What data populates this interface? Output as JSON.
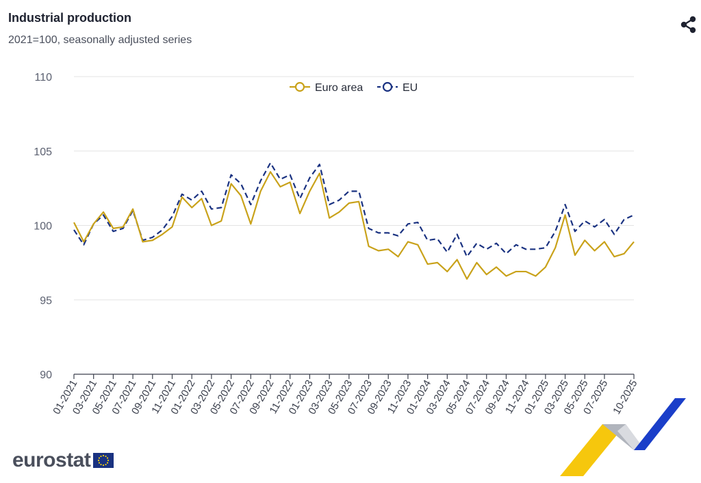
{
  "header": {
    "title": "Industrial production",
    "subtitle": "2021=100, seasonally adjusted series"
  },
  "toolbar": {
    "share_icon": "share-icon"
  },
  "brand": {
    "name": "eurostat",
    "flag_icon": "eu-flag-icon",
    "decoration": "eurostat-ribbon-graphic"
  },
  "colors": {
    "euro_area": "#c9a21a",
    "eu": "#1a3281",
    "grid": "#e3e3e3",
    "axis_text": "#5b6070"
  },
  "chart_data": {
    "type": "line",
    "title": "Industrial production",
    "subtitle": "2021=100, seasonally adjusted series",
    "xlabel": "",
    "ylabel": "",
    "ylim": [
      90,
      110
    ],
    "yticks": [
      "90",
      "95",
      "100",
      "105",
      "110"
    ],
    "grid": true,
    "legend": "top-center",
    "x": [
      "01-2021",
      "02-2021",
      "03-2021",
      "04-2021",
      "05-2021",
      "06-2021",
      "07-2021",
      "08-2021",
      "09-2021",
      "10-2021",
      "11-2021",
      "12-2021",
      "01-2022",
      "02-2022",
      "03-2022",
      "04-2022",
      "05-2022",
      "06-2022",
      "07-2022",
      "08-2022",
      "09-2022",
      "10-2022",
      "11-2022",
      "12-2022",
      "01-2023",
      "02-2023",
      "03-2023",
      "04-2023",
      "05-2023",
      "06-2023",
      "07-2023",
      "08-2023",
      "09-2023",
      "10-2023",
      "11-2023",
      "12-2023",
      "01-2024",
      "02-2024",
      "03-2024",
      "04-2024",
      "05-2024",
      "06-2024",
      "07-2024",
      "08-2024",
      "09-2024",
      "10-2024",
      "11-2024",
      "12-2024",
      "01-2025",
      "02-2025",
      "03-2025",
      "04-2025",
      "05-2025",
      "06-2025",
      "07-2025",
      "08-2025",
      "09-2025",
      "10-2025"
    ],
    "xtick_labels": [
      "01-2021",
      "03-2021",
      "05-2021",
      "07-2021",
      "09-2021",
      "11-2021",
      "01-2022",
      "03-2022",
      "05-2022",
      "07-2022",
      "09-2022",
      "11-2022",
      "01-2023",
      "03-2023",
      "05-2023",
      "07-2023",
      "09-2023",
      "11-2023",
      "01-2024",
      "03-2024",
      "05-2024",
      "07-2024",
      "09-2024",
      "11-2024",
      "01-2025",
      "03-2025",
      "05-2025",
      "07-2025",
      "10-2025"
    ],
    "series": [
      {
        "name": "Euro area",
        "style": "solid",
        "color": "#c9a21a",
        "values": [
          100.2,
          98.9,
          100.1,
          100.9,
          99.8,
          99.9,
          101.1,
          98.9,
          99.0,
          99.4,
          99.9,
          101.9,
          101.2,
          101.8,
          100.0,
          100.3,
          102.8,
          102.0,
          100.1,
          102.3,
          103.6,
          102.6,
          102.9,
          100.8,
          102.3,
          103.5,
          100.5,
          100.9,
          101.5,
          101.6,
          98.6,
          98.3,
          98.4,
          97.9,
          98.9,
          98.7,
          97.4,
          97.5,
          96.9,
          97.7,
          96.4,
          97.5,
          96.7,
          97.2,
          96.6,
          96.9,
          96.9,
          96.6,
          97.2,
          98.5,
          100.7,
          98.0,
          99.0,
          98.3,
          98.9,
          97.9,
          98.1,
          98.9
        ]
      },
      {
        "name": "EU",
        "style": "dashed",
        "color": "#1a3281",
        "values": [
          99.7,
          98.7,
          100.1,
          100.7,
          99.6,
          99.8,
          101.0,
          99.0,
          99.2,
          99.7,
          100.6,
          102.1,
          101.7,
          102.3,
          101.1,
          101.2,
          103.4,
          102.8,
          101.4,
          103.0,
          104.2,
          103.1,
          103.4,
          101.8,
          103.2,
          104.1,
          101.4,
          101.7,
          102.3,
          102.3,
          99.8,
          99.5,
          99.5,
          99.3,
          100.1,
          100.2,
          99.0,
          99.1,
          98.2,
          99.4,
          97.9,
          98.8,
          98.4,
          98.8,
          98.1,
          98.7,
          98.4,
          98.4,
          98.5,
          99.6,
          101.4,
          99.6,
          100.3,
          99.9,
          100.4,
          99.4,
          100.4,
          100.7
        ]
      }
    ]
  }
}
